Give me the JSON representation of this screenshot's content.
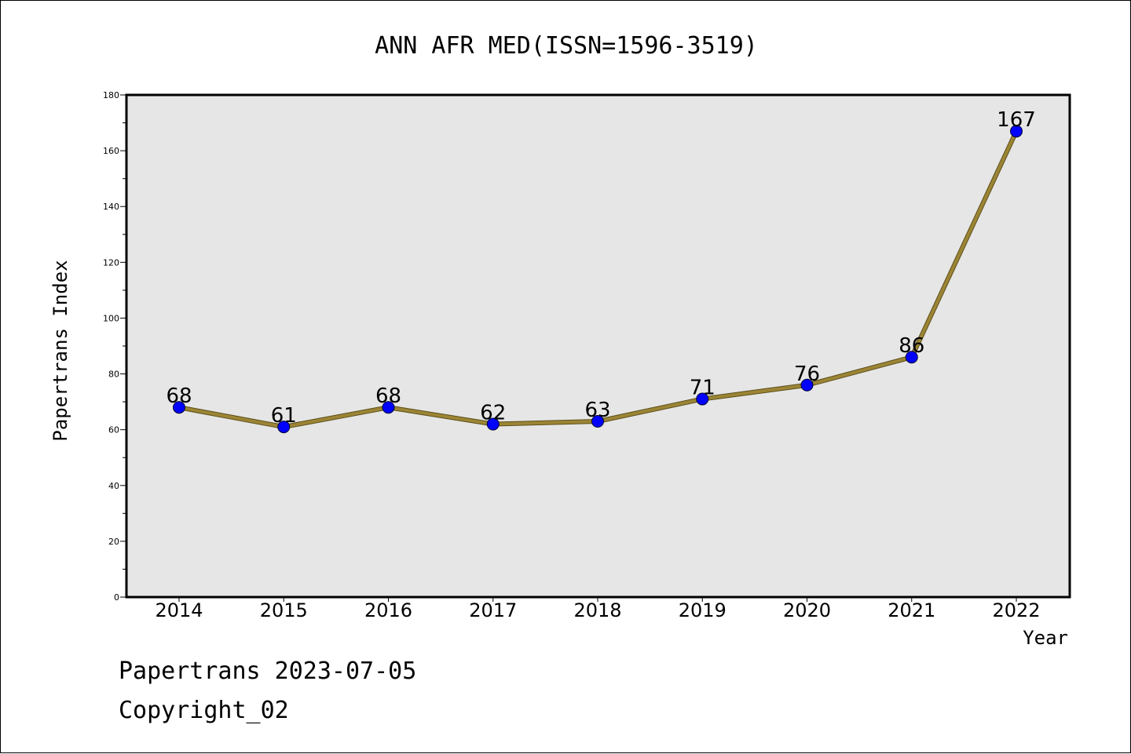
{
  "chart_data": {
    "type": "line",
    "title": "ANN AFR MED(ISSN=1596-3519)",
    "xlabel": "Year",
    "ylabel": "Papertrans Index",
    "categories": [
      "2014",
      "2015",
      "2016",
      "2017",
      "2018",
      "2019",
      "2020",
      "2021",
      "2022"
    ],
    "series": [
      {
        "values": [
          68,
          61,
          68,
          62,
          63,
          71,
          76,
          86,
          167
        ],
        "line_color": "#9b8535",
        "marker_color": "#0000ff"
      }
    ],
    "ylim": [
      0,
      180
    ],
    "y_ticks": [
      0,
      20,
      40,
      60,
      80,
      100,
      120,
      140,
      160,
      180
    ],
    "grid": false,
    "plot_background": "#e6e6e6"
  },
  "footer": {
    "line1": "Papertrans 2023-07-05",
    "line2": "Copyright_02"
  }
}
